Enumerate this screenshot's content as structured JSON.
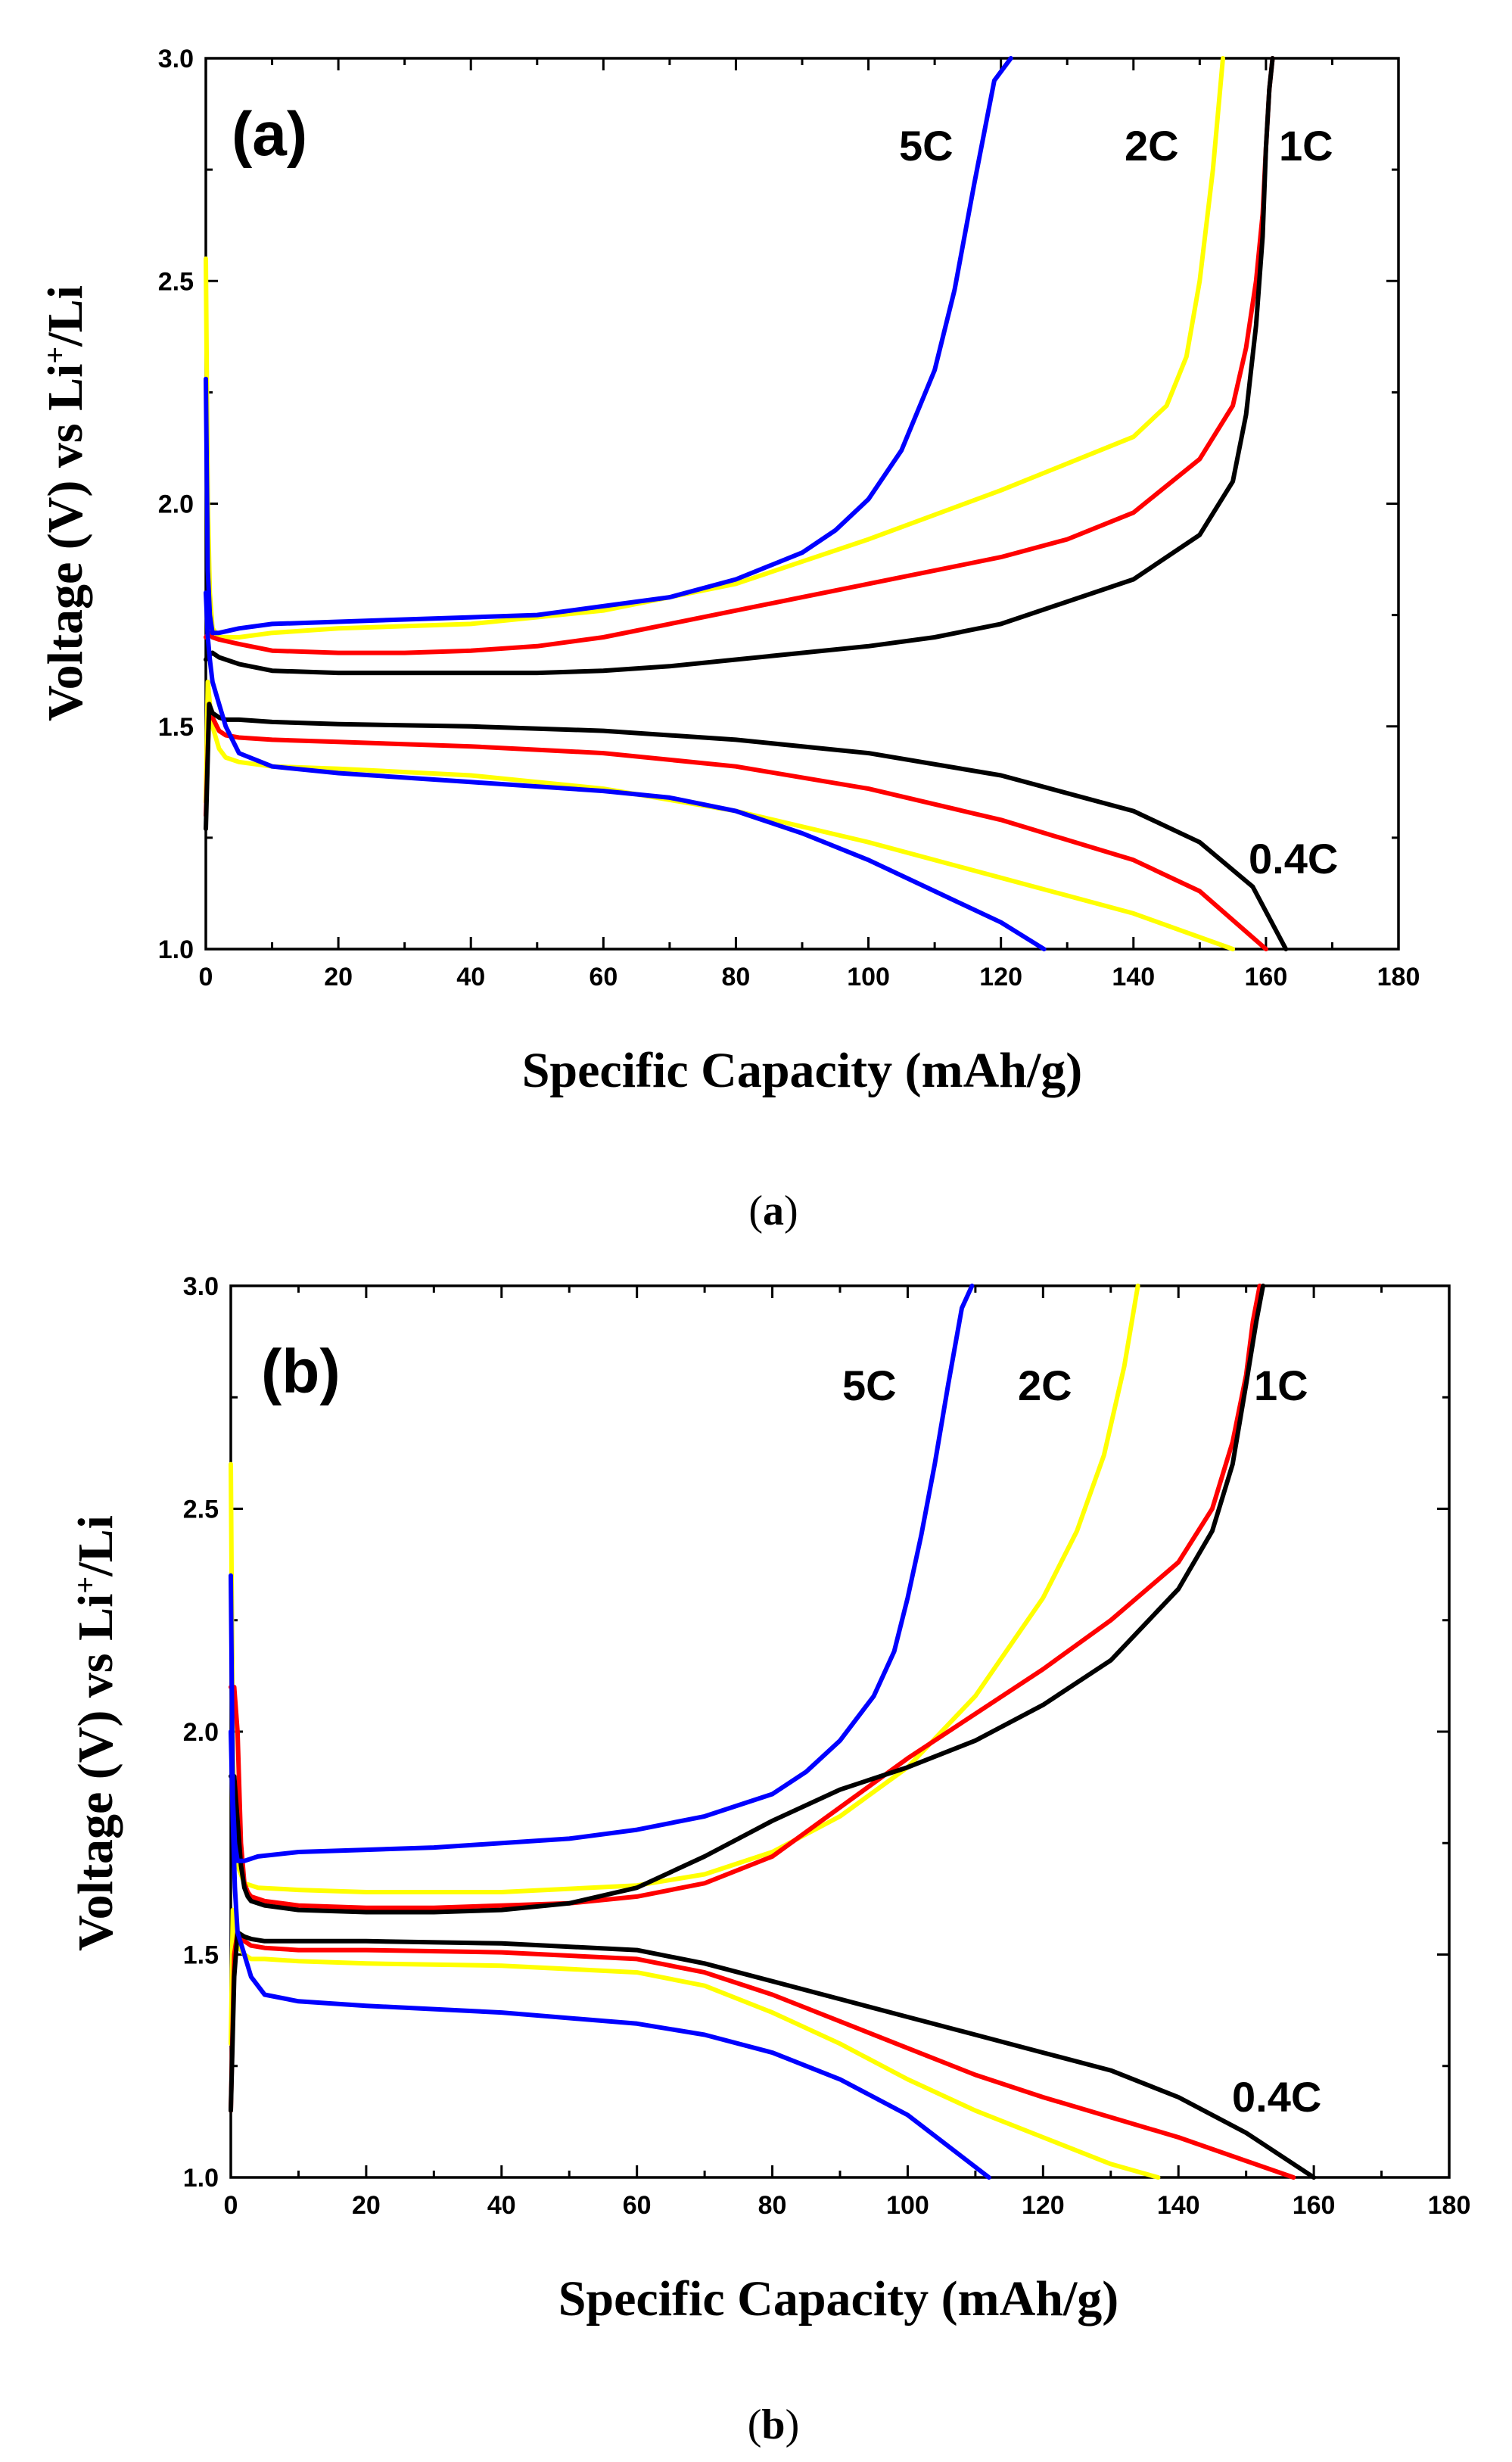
{
  "chart_data": [
    {
      "type": "line",
      "panel_label": "(a)",
      "caption_open": "(",
      "caption_letter": "a",
      "caption_close": ")",
      "xlabel": "Specific Capacity (mAh/g)",
      "ylabel_pre": "Voltage (V) vs Li",
      "ylabel_sup": "+",
      "ylabel_post": "/Li",
      "xlim": [
        0,
        180
      ],
      "ylim": [
        1.0,
        3.0
      ],
      "xticks": [
        "0",
        "20",
        "40",
        "60",
        "80",
        "100",
        "120",
        "140",
        "160",
        "180"
      ],
      "yticks": [
        "1.0",
        "1.5",
        "2.0",
        "2.5",
        "3.0"
      ],
      "rate_labels": {
        "c5": "5C",
        "c2": "2C",
        "c1": "1C",
        "c04": "0.4C"
      },
      "series": [
        {
          "color": "#0000ff",
          "charge": {
            "x": [
              0,
              0.3,
              0.6,
              1,
              2,
              5,
              10,
              20,
              30,
              40,
              50,
              60,
              70,
              80,
              90,
              95,
              100,
              105,
              110,
              113,
              116,
              119,
              121.5
            ],
            "y": [
              2.28,
              1.85,
              1.75,
              1.71,
              1.71,
              1.72,
              1.73,
              1.735,
              1.74,
              1.745,
              1.75,
              1.77,
              1.79,
              1.83,
              1.89,
              1.94,
              2.01,
              2.12,
              2.3,
              2.48,
              2.72,
              2.95,
              3.0
            ]
          },
          "discharge": {
            "x": [
              0,
              0.3,
              0.6,
              1,
              2,
              3,
              5,
              10,
              20,
              40,
              60,
              70,
              80,
              90,
              100,
              110,
              120,
              126.5
            ],
            "y": [
              1.8,
              1.7,
              1.65,
              1.6,
              1.55,
              1.5,
              1.44,
              1.41,
              1.395,
              1.375,
              1.355,
              1.34,
              1.31,
              1.26,
              1.2,
              1.13,
              1.06,
              1.0
            ]
          }
        },
        {
          "color": "#ffff00",
          "charge": {
            "x": [
              0,
              0.3,
              0.6,
              1,
              2,
              5,
              10,
              20,
              40,
              60,
              80,
              100,
              120,
              140,
              145,
              148,
              150,
              152,
              153.5
            ],
            "y": [
              2.55,
              2.0,
              1.8,
              1.72,
              1.7,
              1.7,
              1.71,
              1.72,
              1.73,
              1.76,
              1.82,
              1.92,
              2.03,
              2.15,
              2.22,
              2.33,
              2.5,
              2.75,
              3.0
            ]
          },
          "discharge": {
            "x": [
              0,
              0.3,
              0.6,
              1,
              2,
              3,
              5,
              10,
              20,
              40,
              60,
              80,
              100,
              120,
              140,
              155
            ],
            "y": [
              1.33,
              1.6,
              1.55,
              1.5,
              1.45,
              1.43,
              1.42,
              1.41,
              1.405,
              1.39,
              1.36,
              1.31,
              1.24,
              1.16,
              1.08,
              1.0
            ]
          }
        },
        {
          "color": "#ff0000",
          "charge": {
            "x": [
              0,
              0.5,
              1,
              2,
              5,
              10,
              20,
              30,
              40,
              50,
              60,
              70,
              80,
              90,
              100,
              110,
              120,
              130,
              140,
              150,
              155,
              157,
              158.5,
              159.5,
              160,
              160.5,
              161
            ],
            "y": [
              1.7,
              1.71,
              1.7,
              1.695,
              1.685,
              1.67,
              1.665,
              1.665,
              1.67,
              1.68,
              1.7,
              1.73,
              1.76,
              1.79,
              1.82,
              1.85,
              1.88,
              1.92,
              1.98,
              2.1,
              2.22,
              2.35,
              2.5,
              2.65,
              2.8,
              2.93,
              3.0
            ]
          },
          "discharge": {
            "x": [
              0,
              0.5,
              1,
              2,
              3,
              5,
              10,
              20,
              40,
              60,
              80,
              100,
              120,
              140,
              150,
              160
            ],
            "y": [
              1.3,
              1.55,
              1.52,
              1.49,
              1.48,
              1.475,
              1.47,
              1.465,
              1.455,
              1.44,
              1.41,
              1.36,
              1.29,
              1.2,
              1.13,
              1.0
            ]
          }
        },
        {
          "color": "#000000",
          "charge": {
            "x": [
              0,
              0.5,
              1,
              2,
              5,
              10,
              20,
              30,
              40,
              50,
              60,
              70,
              80,
              90,
              100,
              110,
              120,
              130,
              140,
              150,
              155,
              157,
              158.5,
              159.5,
              160,
              160.5,
              161
            ],
            "y": [
              1.65,
              1.66,
              1.665,
              1.655,
              1.64,
              1.625,
              1.62,
              1.62,
              1.62,
              1.62,
              1.625,
              1.635,
              1.65,
              1.665,
              1.68,
              1.7,
              1.73,
              1.78,
              1.83,
              1.93,
              2.05,
              2.2,
              2.4,
              2.6,
              2.8,
              2.93,
              3.0
            ]
          },
          "discharge": {
            "x": [
              0,
              0.5,
              1,
              2,
              3,
              5,
              10,
              20,
              40,
              60,
              80,
              100,
              120,
              140,
              150,
              158,
              163
            ],
            "y": [
              1.27,
              1.55,
              1.53,
              1.52,
              1.515,
              1.515,
              1.51,
              1.505,
              1.5,
              1.49,
              1.47,
              1.44,
              1.39,
              1.31,
              1.24,
              1.14,
              1.0
            ]
          }
        }
      ]
    },
    {
      "type": "line",
      "panel_label": "(b)",
      "caption_open": "(",
      "caption_letter": "b",
      "caption_close": ")",
      "xlabel": "Specific Capacity (mAh/g)",
      "ylabel_pre": "Voltage (V) vs Li",
      "ylabel_sup": "+",
      "ylabel_post": "/Li",
      "xlim": [
        0,
        180
      ],
      "ylim": [
        1.0,
        3.0
      ],
      "xticks": [
        "0",
        "20",
        "40",
        "60",
        "80",
        "100",
        "120",
        "140",
        "160",
        "180"
      ],
      "yticks": [
        "1.0",
        "1.5",
        "2.0",
        "2.5",
        "3.0"
      ],
      "rate_labels": {
        "c5": "5C",
        "c2": "2C",
        "c1": "1C",
        "c04": "0.4C"
      },
      "series": [
        {
          "color": "#0000ff",
          "charge": {
            "x": [
              0,
              0.3,
              0.6,
              1,
              2,
              4,
              10,
              20,
              30,
              40,
              50,
              60,
              70,
              80,
              85,
              90,
              95,
              98,
              100,
              102,
              104,
              106,
              108,
              109.5
            ],
            "y": [
              2.35,
              1.85,
              1.75,
              1.71,
              1.71,
              1.72,
              1.73,
              1.735,
              1.74,
              1.75,
              1.76,
              1.78,
              1.81,
              1.86,
              1.91,
              1.98,
              2.08,
              2.18,
              2.3,
              2.44,
              2.6,
              2.78,
              2.95,
              3.0
            ]
          },
          "discharge": {
            "x": [
              0,
              0.3,
              0.6,
              1,
              2,
              3,
              5,
              10,
              20,
              40,
              60,
              70,
              80,
              90,
              100,
              112
            ],
            "y": [
              2.0,
              1.8,
              1.65,
              1.55,
              1.5,
              1.45,
              1.41,
              1.395,
              1.385,
              1.37,
              1.345,
              1.32,
              1.28,
              1.22,
              1.14,
              1.0
            ]
          }
        },
        {
          "color": "#ffff00",
          "charge": {
            "x": [
              0,
              0.3,
              0.6,
              1,
              2,
              4,
              10,
              20,
              40,
              60,
              70,
              80,
              90,
              100,
              110,
              120,
              125,
              129,
              132,
              134
            ],
            "y": [
              2.6,
              1.95,
              1.78,
              1.7,
              1.66,
              1.65,
              1.645,
              1.64,
              1.64,
              1.655,
              1.68,
              1.73,
              1.81,
              1.92,
              2.08,
              2.3,
              2.45,
              2.62,
              2.82,
              3.0
            ]
          },
          "discharge": {
            "x": [
              0,
              0.3,
              0.6,
              1,
              2,
              3,
              5,
              10,
              20,
              40,
              60,
              70,
              80,
              90,
              100,
              110,
              120,
              130,
              137
            ],
            "y": [
              1.3,
              1.6,
              1.55,
              1.52,
              1.5,
              1.49,
              1.49,
              1.485,
              1.48,
              1.475,
              1.46,
              1.43,
              1.37,
              1.3,
              1.22,
              1.15,
              1.09,
              1.03,
              1.0
            ]
          }
        },
        {
          "color": "#ff0000",
          "charge": {
            "x": [
              0,
              0.5,
              1,
              1.5,
              2,
              2.5,
              3,
              5,
              10,
              20,
              30,
              40,
              50,
              60,
              70,
              80,
              90,
              100,
              110,
              120,
              130,
              140,
              145,
              148,
              150,
              151,
              152
            ],
            "y": [
              2.1,
              2.1,
              2.0,
              1.75,
              1.66,
              1.64,
              1.63,
              1.62,
              1.61,
              1.605,
              1.605,
              1.61,
              1.615,
              1.63,
              1.66,
              1.72,
              1.83,
              1.94,
              2.04,
              2.14,
              2.25,
              2.38,
              2.5,
              2.65,
              2.8,
              2.92,
              3.0
            ]
          },
          "discharge": {
            "x": [
              0,
              0.5,
              1,
              2,
              3,
              5,
              10,
              20,
              40,
              60,
              70,
              80,
              90,
              100,
              110,
              120,
              140,
              157
            ],
            "y": [
              1.15,
              1.5,
              1.55,
              1.53,
              1.52,
              1.515,
              1.51,
              1.51,
              1.505,
              1.49,
              1.46,
              1.41,
              1.35,
              1.29,
              1.23,
              1.18,
              1.09,
              1.0
            ]
          }
        },
        {
          "color": "#000000",
          "charge": {
            "x": [
              0,
              0.5,
              1,
              1.5,
              2,
              2.5,
              3,
              5,
              10,
              20,
              30,
              40,
              50,
              60,
              70,
              80,
              90,
              100,
              110,
              120,
              130,
              140,
              145,
              148,
              150,
              151.5,
              152.5
            ],
            "y": [
              1.9,
              1.9,
              1.8,
              1.7,
              1.65,
              1.63,
              1.62,
              1.61,
              1.6,
              1.595,
              1.595,
              1.6,
              1.615,
              1.65,
              1.72,
              1.8,
              1.87,
              1.92,
              1.98,
              2.06,
              2.16,
              2.32,
              2.45,
              2.6,
              2.78,
              2.92,
              3.0
            ]
          },
          "discharge": {
            "x": [
              0,
              0.5,
              1,
              2,
              3,
              5,
              10,
              20,
              40,
              60,
              70,
              80,
              90,
              100,
              110,
              120,
              130,
              140,
              150,
              160
            ],
            "y": [
              1.15,
              1.45,
              1.55,
              1.54,
              1.535,
              1.53,
              1.53,
              1.53,
              1.525,
              1.51,
              1.48,
              1.44,
              1.4,
              1.36,
              1.32,
              1.28,
              1.24,
              1.18,
              1.1,
              1.0
            ]
          }
        }
      ]
    }
  ]
}
